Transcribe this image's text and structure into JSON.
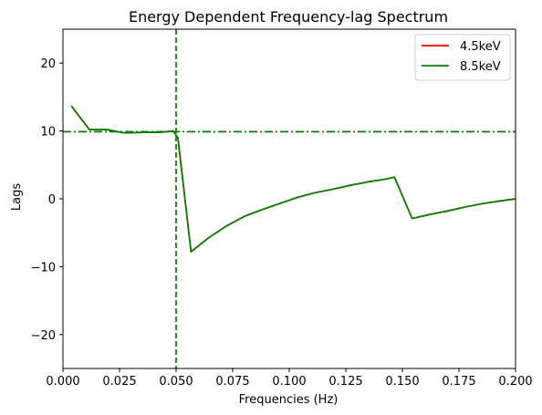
{
  "chart_data": {
    "type": "line",
    "title": "Energy Dependent Frequency-lag Spectrum",
    "xlabel": "Frequencies (Hz)",
    "ylabel": "Lags",
    "xlim": [
      0.0,
      0.2
    ],
    "ylim": [
      -25,
      25
    ],
    "xticks": [
      0.0,
      0.025,
      0.05,
      0.075,
      0.1,
      0.125,
      0.15,
      0.175,
      0.2
    ],
    "xtick_labels": [
      "0.000",
      "0.025",
      "0.050",
      "0.075",
      "0.100",
      "0.125",
      "0.150",
      "0.175",
      "0.200"
    ],
    "yticks": [
      -20,
      -10,
      0,
      10,
      20
    ],
    "ytick_labels": [
      "−20",
      "−10",
      "0",
      "10",
      "20"
    ],
    "grid": false,
    "legend_position": "top-right",
    "series": [
      {
        "name": "4.5keV",
        "color": "#ff0000",
        "x": [
          0.0039,
          0.0117,
          0.0195,
          0.0273,
          0.0352,
          0.043,
          0.0488,
          0.0508,
          0.0566,
          0.0645,
          0.0723,
          0.0801,
          0.0879,
          0.0957,
          0.1035,
          0.1113,
          0.1191,
          0.127,
          0.1348,
          0.1426,
          0.1465,
          0.1543,
          0.1621,
          0.1699,
          0.1777,
          0.1855,
          0.1934,
          0.2
        ],
        "y": [
          13.6,
          10.2,
          10.2,
          9.7,
          9.8,
          9.8,
          10.0,
          9.0,
          -7.8,
          -5.7,
          -4.0,
          -2.6,
          -1.6,
          -0.7,
          0.2,
          0.9,
          1.4,
          2.0,
          2.5,
          2.9,
          3.2,
          -2.9,
          -2.3,
          -1.8,
          -1.2,
          -0.7,
          -0.3,
          0.0
        ]
      },
      {
        "name": "8.5keV",
        "color": "#008000",
        "x": [
          0.0039,
          0.0117,
          0.0195,
          0.0273,
          0.0352,
          0.043,
          0.0488,
          0.0508,
          0.0566,
          0.0645,
          0.0723,
          0.0801,
          0.0879,
          0.0957,
          0.1035,
          0.1113,
          0.1191,
          0.127,
          0.1348,
          0.1426,
          0.1465,
          0.1543,
          0.1621,
          0.1699,
          0.1777,
          0.1855,
          0.1934,
          0.2
        ],
        "y": [
          13.6,
          10.2,
          10.2,
          9.7,
          9.8,
          9.8,
          10.0,
          9.0,
          -7.8,
          -5.7,
          -4.0,
          -2.6,
          -1.6,
          -0.7,
          0.2,
          0.9,
          1.4,
          2.0,
          2.5,
          2.9,
          3.2,
          -2.9,
          -2.3,
          -1.8,
          -1.2,
          -0.7,
          -0.3,
          0.0
        ]
      }
    ],
    "reference_lines": [
      {
        "orientation": "vertical",
        "value": 0.05,
        "style": "dashed",
        "color": "#008000"
      },
      {
        "orientation": "horizontal",
        "value": 9.9,
        "style": "dashdot",
        "color": "#008000"
      }
    ]
  }
}
